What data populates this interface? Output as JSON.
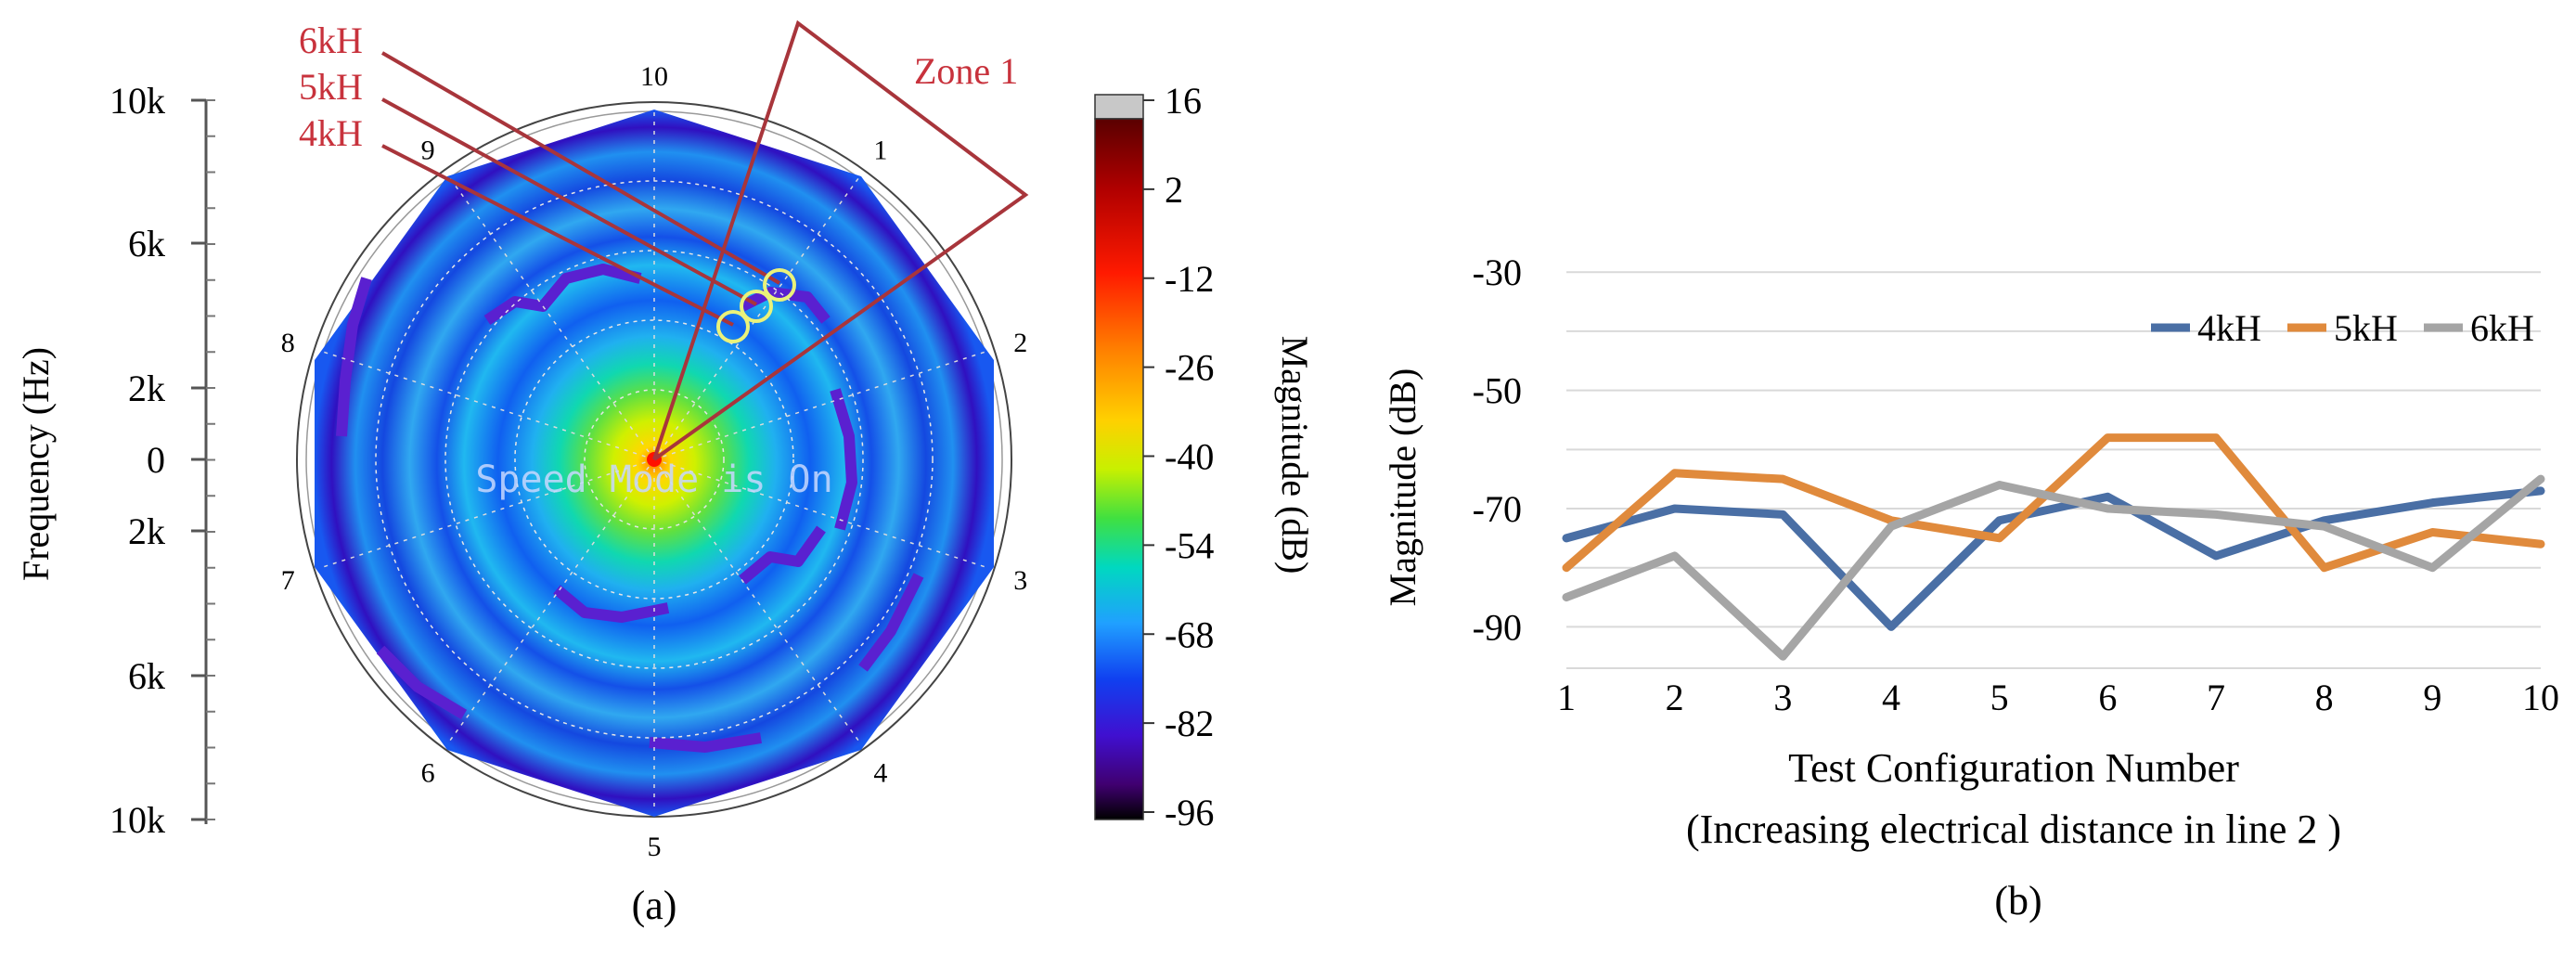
{
  "panel_a": {
    "caption": "(a)",
    "freq_axis_label": "Frequency (Hz)",
    "freq_ticks": [
      "10k",
      "6k",
      "2k",
      "0",
      "2k",
      "6k",
      "10k"
    ],
    "spoke_labels": [
      "10",
      "1",
      "2",
      "3",
      "4",
      "5",
      "6",
      "7",
      "8",
      "9"
    ],
    "overlay_text": "Speed Mode is On",
    "zone_label": "Zone 1",
    "callouts": [
      "6kH",
      "5kH",
      "4kH"
    ],
    "colorbar_label": "Magnitude (dB)",
    "colorbar_ticks": [
      "16",
      "2",
      "-12",
      "-26",
      "-40",
      "-54",
      "-68",
      "-82",
      "-96"
    ],
    "colors": {
      "callout": "#c8323c",
      "zone_line": "#b03a40",
      "marker": "#e8f080"
    }
  },
  "chart_data": {
    "type": "line",
    "title": "",
    "caption": "(b)",
    "xlabel": "Test Configuration Number",
    "xlabel2": "(Increasing electrical distance in line 2 )",
    "ylabel": "Magnitude (dB)",
    "x": [
      1,
      2,
      3,
      4,
      5,
      6,
      7,
      8,
      9,
      10
    ],
    "ylim": [
      -97,
      -24
    ],
    "yticks": [
      -30,
      -50,
      -70,
      -90
    ],
    "grid": true,
    "legend_position": "top-right",
    "series": [
      {
        "name": "4kH",
        "color": "#4a6fa5",
        "values": [
          -75,
          -70,
          -71,
          -90,
          -72,
          -68,
          -78,
          -72,
          -69,
          -67
        ]
      },
      {
        "name": "5kH",
        "color": "#e08a3c",
        "values": [
          -80,
          -64,
          -65,
          -72,
          -75,
          -58,
          -58,
          -80,
          -74,
          -76
        ]
      },
      {
        "name": "6kH",
        "color": "#a5a5a5",
        "values": [
          -85,
          -78,
          -95,
          -73,
          -66,
          -70,
          -71,
          -73,
          -80,
          -65
        ]
      }
    ]
  }
}
